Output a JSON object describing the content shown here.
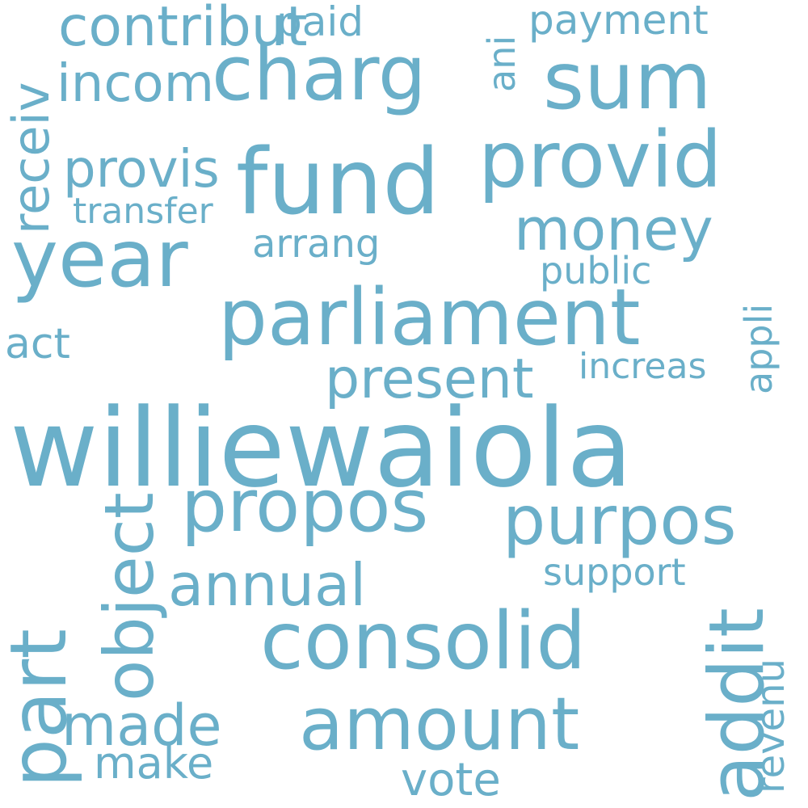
{
  "colors": {
    "background": "#ffffff",
    "word": "#6aafc9"
  },
  "words": [
    {
      "text": "williewaiola"
    },
    {
      "text": "parliament"
    },
    {
      "text": "fund"
    },
    {
      "text": "year"
    },
    {
      "text": "consolid"
    },
    {
      "text": "charg"
    },
    {
      "text": "sum"
    },
    {
      "text": "provid"
    },
    {
      "text": "propos"
    },
    {
      "text": "amount"
    },
    {
      "text": "purpos"
    },
    {
      "text": "money"
    },
    {
      "text": "annual"
    },
    {
      "text": "present"
    },
    {
      "text": "made"
    },
    {
      "text": "contribut"
    },
    {
      "text": "incom"
    },
    {
      "text": "provis"
    },
    {
      "text": "act"
    },
    {
      "text": "vote"
    },
    {
      "text": "make"
    },
    {
      "text": "paid"
    },
    {
      "text": "payment"
    },
    {
      "text": "transfer"
    },
    {
      "text": "arrang"
    },
    {
      "text": "public"
    },
    {
      "text": "support"
    },
    {
      "text": "increas"
    },
    {
      "text": "part"
    },
    {
      "text": "addit"
    },
    {
      "text": "object"
    },
    {
      "text": "receiv"
    },
    {
      "text": "revenu"
    },
    {
      "text": "appli"
    },
    {
      "text": "ani"
    }
  ]
}
